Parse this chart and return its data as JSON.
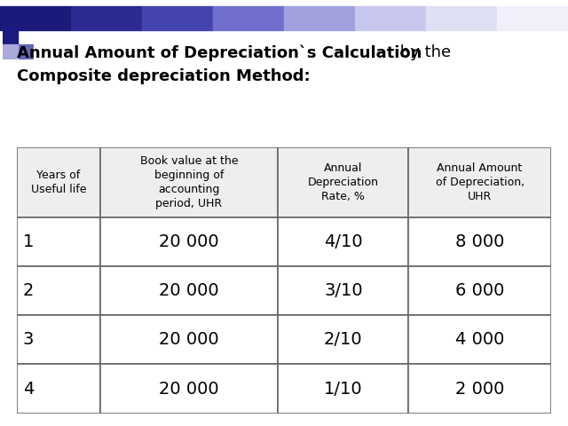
{
  "title_bold": "Annual Amount of Depreciation`s Calculation",
  "title_normal_same_line": " by the",
  "title_bold_line2": "Composite depreciation Method:",
  "col_headers": [
    "Years of\nUseful life",
    "Book value at the\nbeginning of\naccounting\nperiod, UHR",
    "Annual\nDepreciation\nRate, %",
    "Annual Amount\nof Depreciation,\nUHR"
  ],
  "rows": [
    [
      "1",
      "20 000",
      "4/10",
      "8 000"
    ],
    [
      "2",
      "20 000",
      "3/10",
      "6 000"
    ],
    [
      "3",
      "20 000",
      "2/10",
      "4 000"
    ],
    [
      "4",
      "20 000",
      "1/10",
      "2 000"
    ]
  ],
  "header_bg": "#eeeeee",
  "row_bg": "#ffffff",
  "border_color": "#666666",
  "title_fontsize": 13,
  "header_fontsize": 9,
  "cell_fontsize_year": 14,
  "cell_fontsize_data": 14,
  "background_color": "#ffffff",
  "bar_grad_colors": [
    "#1a1a7a",
    "#2a2a90",
    "#4444b0",
    "#7070cc",
    "#a0a0dd",
    "#c8c8ee",
    "#e0e0f5",
    "#f0f0fa",
    "#fafafa"
  ],
  "dec_dark": "#1a1a80",
  "dec_mid": "#6666bb",
  "dec_light": "#aaaadd"
}
